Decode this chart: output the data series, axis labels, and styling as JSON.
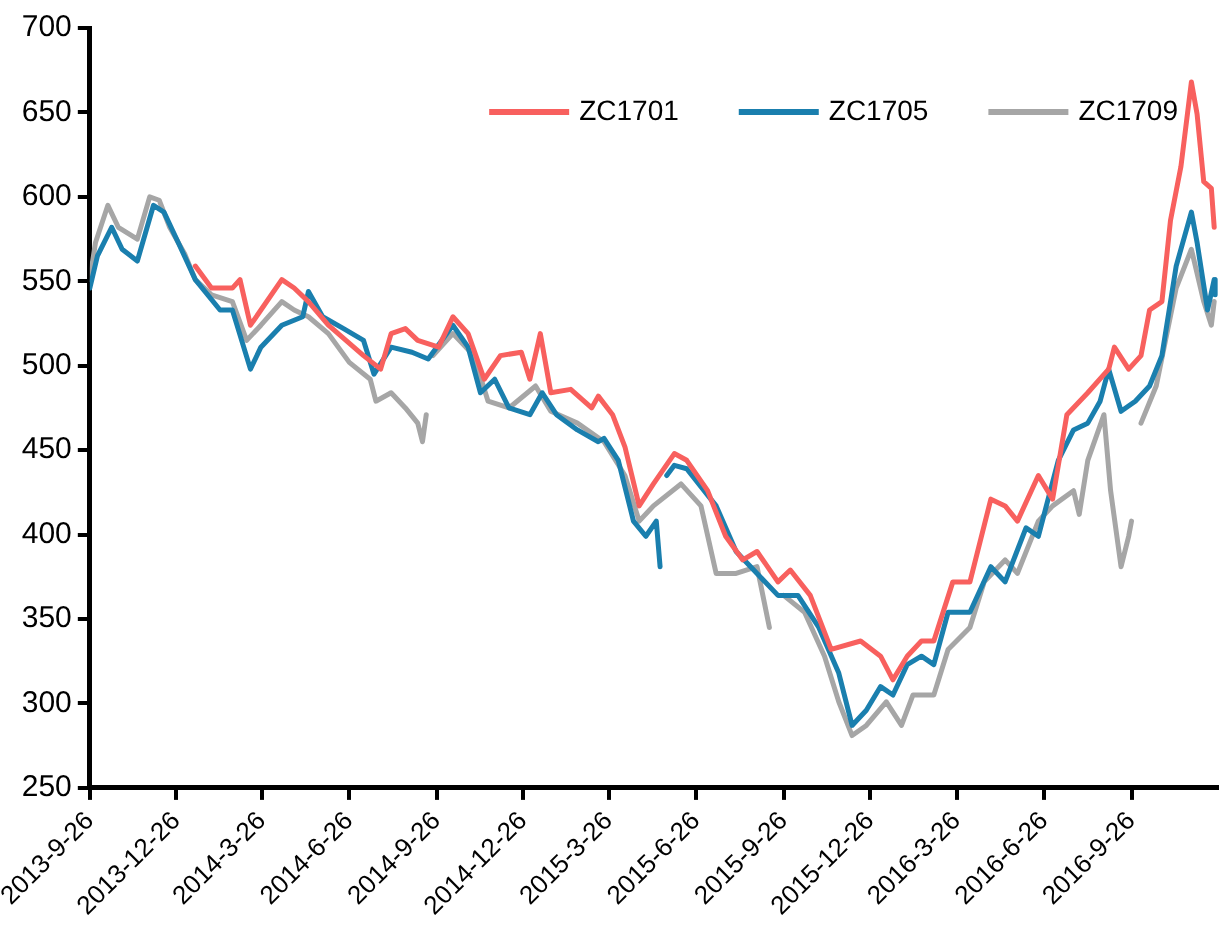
{
  "chart_data": {
    "type": "line",
    "xlim": [
      "2013-09-26",
      "2016-12-26"
    ],
    "xticks": [
      {
        "value": "2013-09-26",
        "label": "2013-9-26"
      },
      {
        "value": "2013-12-26",
        "label": "2013-12-26"
      },
      {
        "value": "2014-03-26",
        "label": "2014-3-26"
      },
      {
        "value": "2014-06-26",
        "label": "2014-6-26"
      },
      {
        "value": "2014-09-26",
        "label": "2014-9-26"
      },
      {
        "value": "2014-12-26",
        "label": "2014-12-26"
      },
      {
        "value": "2015-03-26",
        "label": "2015-3-26"
      },
      {
        "value": "2015-06-26",
        "label": "2015-6-26"
      },
      {
        "value": "2015-09-26",
        "label": "2015-9-26"
      },
      {
        "value": "2015-12-26",
        "label": "2015-12-26"
      },
      {
        "value": "2016-03-26",
        "label": "2016-3-26"
      },
      {
        "value": "2016-06-26",
        "label": "2016-6-26"
      },
      {
        "value": "2016-09-26",
        "label": "2016-9-26"
      }
    ],
    "ylim": [
      250,
      700
    ],
    "yticks": [
      250,
      300,
      350,
      400,
      450,
      500,
      550,
      600,
      650,
      700
    ],
    "grid": false,
    "legend": "top right",
    "marker": "none",
    "line_style": "solid",
    "series": [
      {
        "name": "ZC1701",
        "color": "#f8605e",
        "x": [
          "2014-01-15",
          "2014-02-01",
          "2014-02-23",
          "2014-03-03",
          "2014-03-14",
          "2014-03-25",
          "2014-04-16",
          "2014-04-29",
          "2014-05-14",
          "2014-06-04",
          "2014-07-11",
          "2014-07-29",
          "2014-08-09",
          "2014-08-24",
          "2014-09-06",
          "2014-09-28",
          "2014-10-13",
          "2014-10-29",
          "2014-11-15",
          "2014-12-02",
          "2014-12-24",
          "2015-01-02",
          "2015-01-13",
          "2015-01-24",
          "2015-02-14",
          "2015-03-08",
          "2015-03-15",
          "2015-03-30",
          "2015-04-12",
          "2015-04-27",
          "2015-05-12",
          "2015-06-03",
          "2015-06-16",
          "2015-07-08",
          "2015-07-27",
          "2015-08-14",
          "2015-08-29",
          "2015-09-20",
          "2015-10-03",
          "2015-10-24",
          "2015-11-15",
          "2015-12-16",
          "2016-01-06",
          "2016-01-19",
          "2016-02-03",
          "2016-02-18",
          "2016-03-02",
          "2016-03-22",
          "2016-04-09",
          "2016-05-01",
          "2016-05-16",
          "2016-05-29",
          "2016-06-20",
          "2016-07-05",
          "2016-07-20",
          "2016-08-11",
          "2016-09-02",
          "2016-09-08",
          "2016-09-23",
          "2016-10-06",
          "2016-10-15",
          "2016-10-28",
          "2016-11-06",
          "2016-11-17",
          "2016-11-28",
          "2016-12-04",
          "2016-12-11",
          "2016-12-19",
          "2016-12-22"
        ],
        "values": [
          559,
          546,
          546,
          551,
          524,
          533,
          551,
          546,
          538,
          524,
          506,
          498,
          519,
          522,
          515,
          511,
          529,
          519,
          492,
          506,
          508,
          492,
          519,
          484,
          486,
          475,
          482,
          471,
          452,
          417,
          430,
          448,
          444,
          426,
          399,
          385,
          390,
          372,
          379,
          364,
          332,
          337,
          328,
          314,
          328,
          337,
          337,
          372,
          372,
          421,
          417,
          408,
          435,
          421,
          471,
          484,
          498,
          511,
          498,
          506,
          533,
          538,
          586,
          618,
          668,
          649,
          609,
          605,
          582
        ]
      },
      {
        "name": "ZC1705",
        "color": "#1a7fae",
        "x": [
          "2013-09-26",
          "2013-10-04",
          "2013-10-19",
          "2013-10-30",
          "2013-11-15",
          "2013-12-02",
          "2013-12-13",
          "2013-12-28",
          "2014-01-15",
          "2014-02-10",
          "2014-02-23",
          "2014-03-14",
          "2014-03-25",
          "2014-04-16",
          "2014-05-08",
          "2014-05-14",
          "2014-05-29",
          "2014-06-20",
          "2014-07-11",
          "2014-07-22",
          "2014-08-09",
          "2014-08-31",
          "2014-09-17",
          "2014-10-13",
          "2014-10-29",
          "2014-11-11",
          "2014-11-26",
          "2014-12-11",
          "2015-01-02",
          "2015-01-15",
          "2015-01-30",
          "2015-02-21",
          "2015-03-15",
          "2015-03-21",
          "2015-04-05",
          "2015-04-21",
          "2015-05-04",
          "2015-05-15",
          "2015-05-19",
          "2015-05-21",
          "2015-05-26",
          "2015-06-03",
          "2015-06-16",
          "2015-07-17",
          "2015-08-07",
          "2015-08-29",
          "2015-09-20",
          "2015-10-11",
          "2015-11-02",
          "2015-11-23",
          "2015-12-07",
          "2015-12-22",
          "2016-01-06",
          "2016-01-19",
          "2016-02-03",
          "2016-02-18",
          "2016-03-02",
          "2016-03-17",
          "2016-04-09",
          "2016-05-01",
          "2016-05-16",
          "2016-06-07",
          "2016-06-20",
          "2016-07-11",
          "2016-07-27",
          "2016-08-11",
          "2016-08-24",
          "2016-09-02",
          "2016-09-15",
          "2016-09-30",
          "2016-10-15",
          "2016-10-28",
          "2016-11-12",
          "2016-11-28",
          "2016-12-04",
          "2016-12-15",
          "2016-12-22",
          "2016-12-23"
        ],
        "values": [
          546,
          565,
          582,
          569,
          562,
          595,
          591,
          573,
          551,
          533,
          533,
          498,
          511,
          524,
          529,
          544,
          529,
          522,
          515,
          495,
          511,
          508,
          504,
          524,
          511,
          484,
          492,
          475,
          471,
          484,
          471,
          462,
          455,
          457,
          444,
          408,
          399,
          408,
          381,
          null,
          435,
          441,
          439,
          417,
          390,
          377,
          364,
          364,
          345,
          318,
          287,
          296,
          310,
          305,
          323,
          328,
          323,
          354,
          354,
          381,
          372,
          404,
          399,
          444,
          462,
          466,
          479,
          498,
          473,
          479,
          488,
          506,
          559,
          591,
          573,
          533,
          551,
          542
        ]
      },
      {
        "name": "ZC1709",
        "color": "#a6a6a6",
        "x": [
          "2013-09-26",
          "2013-10-02",
          "2013-10-15",
          "2013-10-26",
          "2013-11-15",
          "2013-11-28",
          "2013-12-08",
          "2013-12-19",
          "2014-01-04",
          "2014-01-15",
          "2014-02-01",
          "2014-02-23",
          "2014-03-10",
          "2014-03-25",
          "2014-04-16",
          "2014-04-29",
          "2014-05-14",
          "2014-06-04",
          "2014-06-26",
          "2014-07-18",
          "2014-07-24",
          "2014-08-09",
          "2014-08-24",
          "2014-09-06",
          "2014-09-11",
          "2014-09-15",
          "2014-09-17",
          "2014-09-22",
          "2014-10-13",
          "2014-11-04",
          "2014-11-19",
          "2014-12-11",
          "2015-01-08",
          "2015-01-24",
          "2015-02-21",
          "2015-03-21",
          "2015-04-12",
          "2015-04-27",
          "2015-05-12",
          "2015-06-10",
          "2015-07-01",
          "2015-07-17",
          "2015-08-07",
          "2015-08-29",
          "2015-09-11",
          "2015-09-15",
          "2015-09-26",
          "2015-10-18",
          "2015-11-08",
          "2015-11-23",
          "2015-12-07",
          "2015-12-22",
          "2016-01-12",
          "2016-01-28",
          "2016-02-09",
          "2016-03-02",
          "2016-03-17",
          "2016-04-09",
          "2016-04-24",
          "2016-05-16",
          "2016-05-29",
          "2016-06-20",
          "2016-07-05",
          "2016-07-27",
          "2016-08-02",
          "2016-08-11",
          "2016-08-28",
          "2016-09-04",
          "2016-09-15",
          "2016-09-23",
          "2016-09-26",
          "2016-09-30",
          "2016-10-06",
          "2016-10-22",
          "2016-11-12",
          "2016-11-28",
          "2016-12-11",
          "2016-12-19",
          "2016-12-22"
        ],
        "values": [
          551,
          573,
          595,
          582,
          575,
          600,
          598,
          582,
          566,
          551,
          542,
          538,
          515,
          524,
          538,
          533,
          529,
          519,
          502,
          492,
          479,
          484,
          475,
          466,
          455,
          471,
          null,
          506,
          519,
          506,
          479,
          475,
          488,
          473,
          466,
          455,
          435,
          408,
          417,
          430,
          417,
          377,
          377,
          381,
          345,
          null,
          364,
          354,
          328,
          301,
          281,
          287,
          301,
          287,
          305,
          305,
          332,
          345,
          372,
          385,
          377,
          408,
          417,
          426,
          412,
          444,
          471,
          426,
          381,
          399,
          408,
          null,
          466,
          488,
          546,
          569,
          538,
          524,
          538
        ]
      }
    ]
  }
}
